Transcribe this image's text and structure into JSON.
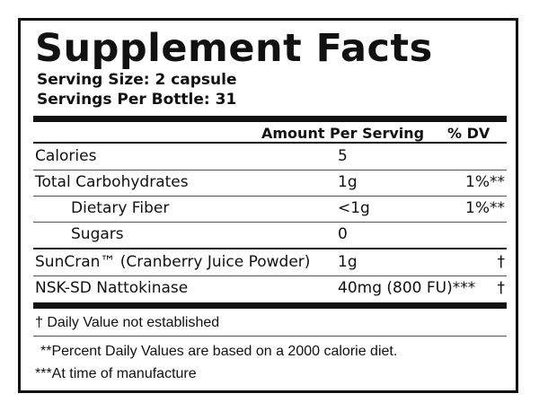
{
  "title": "Supplement Facts",
  "serving_size": "Serving Size: 2 capsule",
  "servings_per_bottle": "Servings Per Bottle: 31",
  "header": {
    "amount": "Amount Per Serving",
    "dv": "% DV"
  },
  "rows": [
    {
      "label": "Calories",
      "amount": "5",
      "dv": ""
    },
    {
      "label": "Total Carbohydrates",
      "amount": "1g",
      "dv": "1%**"
    },
    {
      "label": "Dietary Fiber",
      "amount": "<1g",
      "dv": "1%**"
    },
    {
      "label": "Sugars",
      "amount": "0",
      "dv": ""
    },
    {
      "label": "SunCran™ (Cranberry Juice Powder)",
      "amount": "1g",
      "dv": "†"
    },
    {
      "label": "NSK-SD Nattokinase",
      "amount": "40mg (800 FU)***",
      "dv": "†"
    }
  ],
  "footnotes": {
    "daily_value": "† Daily Value not established",
    "percent_dv": "**Percent Daily Values are based on a 2000 calorie diet.",
    "manufacture": "***At time of manufacture"
  }
}
